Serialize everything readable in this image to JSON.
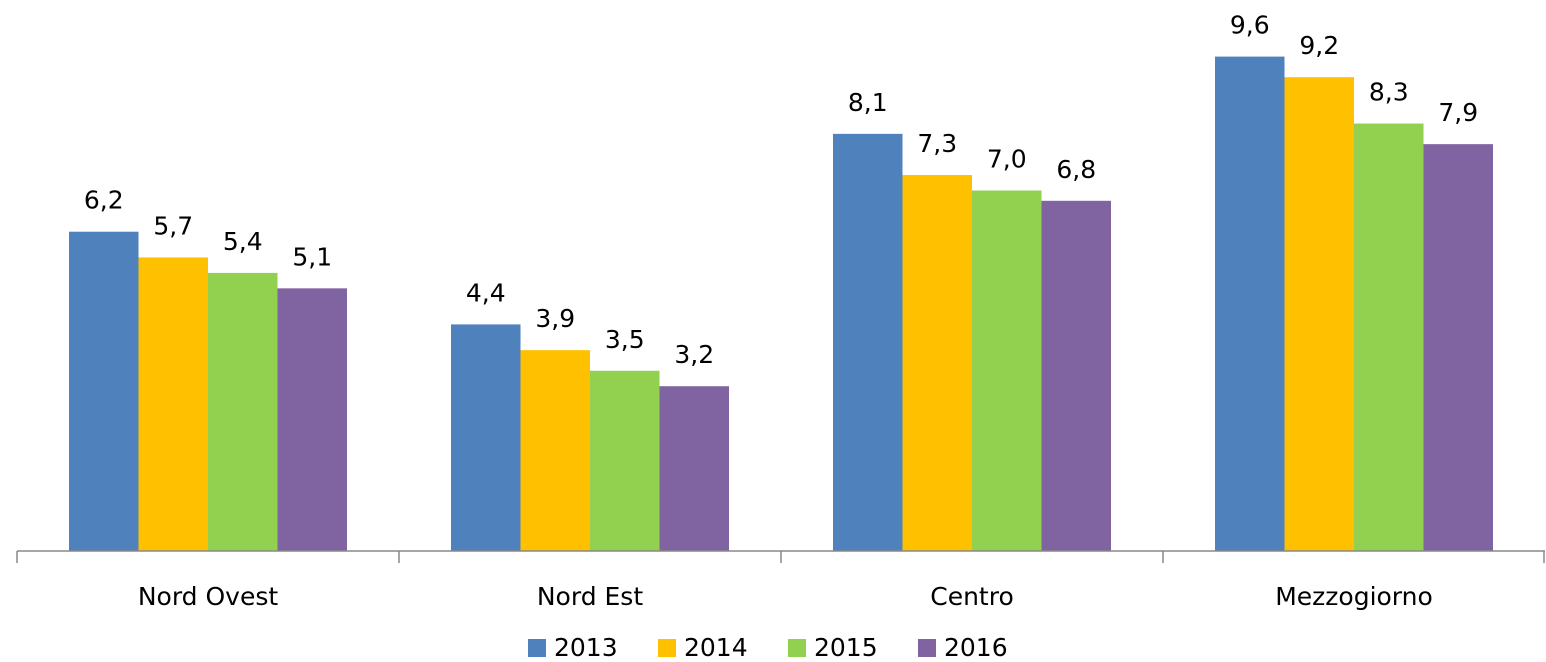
{
  "chart_data": {
    "type": "bar",
    "categories": [
      "Nord Ovest",
      "Nord Est",
      "Centro",
      "Mezzogiorno"
    ],
    "series": [
      {
        "name": "2013",
        "color": "#4f81bd",
        "values": [
          6.2,
          4.4,
          8.1,
          9.6
        ],
        "value_labels": [
          "6,2",
          "4,4",
          "8,1",
          "9,6"
        ]
      },
      {
        "name": "2014",
        "color": "#ffc000",
        "values": [
          5.7,
          3.9,
          7.3,
          9.2
        ],
        "value_labels": [
          "5,7",
          "3,9",
          "7,3",
          "9,2"
        ]
      },
      {
        "name": "2015",
        "color": "#92d050",
        "values": [
          5.4,
          3.5,
          7.0,
          8.3
        ],
        "value_labels": [
          "5,4",
          "3,5",
          "7,0",
          "8,3"
        ]
      },
      {
        "name": "2016",
        "color": "#8064a2",
        "values": [
          5.1,
          3.2,
          6.8,
          7.9
        ],
        "value_labels": [
          "5,1",
          "3,2",
          "6,8",
          "7,9"
        ]
      }
    ],
    "legend": "bottom"
  }
}
